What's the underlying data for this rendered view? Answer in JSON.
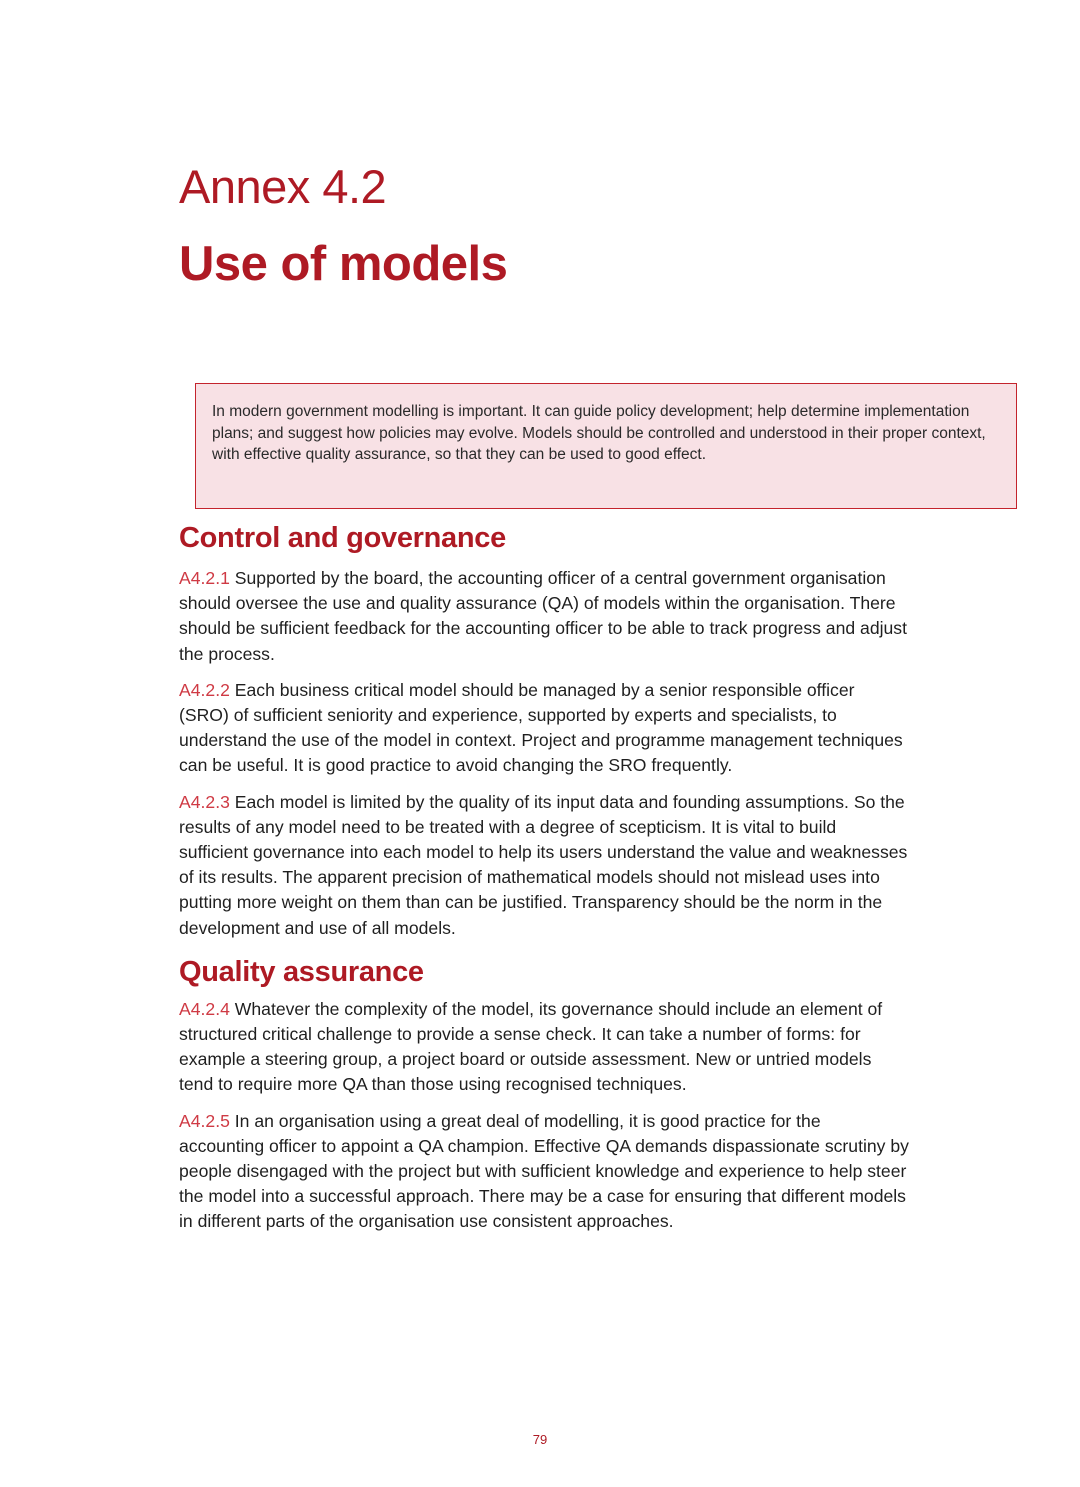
{
  "header": {
    "annex_label": "Annex 4.2",
    "title": "Use of models"
  },
  "summary_box": {
    "text": "In modern government modelling is important. It can guide policy development; help determine implementation plans; and suggest how policies may evolve. Models should be controlled and understood in their proper context, with effective quality assurance, so that they can be used to good effect."
  },
  "sections": [
    {
      "heading": "Control and governance",
      "paragraphs": [
        {
          "number": "A4.2.1",
          "text": "Supported by the board, the accounting officer of a central government organisation should oversee the use and quality assurance (QA) of models within the organisation. There should be sufficient feedback for the accounting officer to be able to track progress and adjust the process."
        },
        {
          "number": "A4.2.2",
          "text": "Each business critical model should be managed by a senior responsible officer (SRO) of sufficient seniority and experience, supported by experts and specialists, to understand the use of the model in context. Project and programme management techniques can be useful. It is good practice to avoid changing the SRO frequently."
        },
        {
          "number": "A4.2.3",
          "text": "Each model is limited by the quality of its input data and founding assumptions. So the results of any model need to be treated with a degree of scepticism. It is vital to build sufficient governance into each model to help its users understand the value and weaknesses of its results. The apparent precision of mathematical models should not mislead uses into putting more weight on them than can be justified. Transparency should be the norm in the development and use of all models."
        }
      ]
    },
    {
      "heading": "Quality assurance",
      "paragraphs": [
        {
          "number": "A4.2.4",
          "text": "Whatever the complexity of the model, its governance should include an element of structured critical challenge to provide a sense check. It can take a number of forms: for example a steering group, a project board or outside assessment. New or untried models tend to require more QA than those using recognised techniques."
        },
        {
          "number": "A4.2.5",
          "text": "In an organisation using a great deal of modelling, it is good practice for the accounting officer to appoint a QA champion. Effective QA demands dispassionate scrutiny by people disengaged with the project but with sufficient knowledge and experience to help steer the model into a successful approach. There may be a case for ensuring that different models in different parts of the organisation use consistent approaches."
        }
      ]
    }
  ],
  "footer": {
    "page_number": "79"
  },
  "colors": {
    "accent": "#ae1a24",
    "paragraph_number": "#cf3a44",
    "box_border": "#c4242d",
    "box_background": "#f8e1e5"
  }
}
